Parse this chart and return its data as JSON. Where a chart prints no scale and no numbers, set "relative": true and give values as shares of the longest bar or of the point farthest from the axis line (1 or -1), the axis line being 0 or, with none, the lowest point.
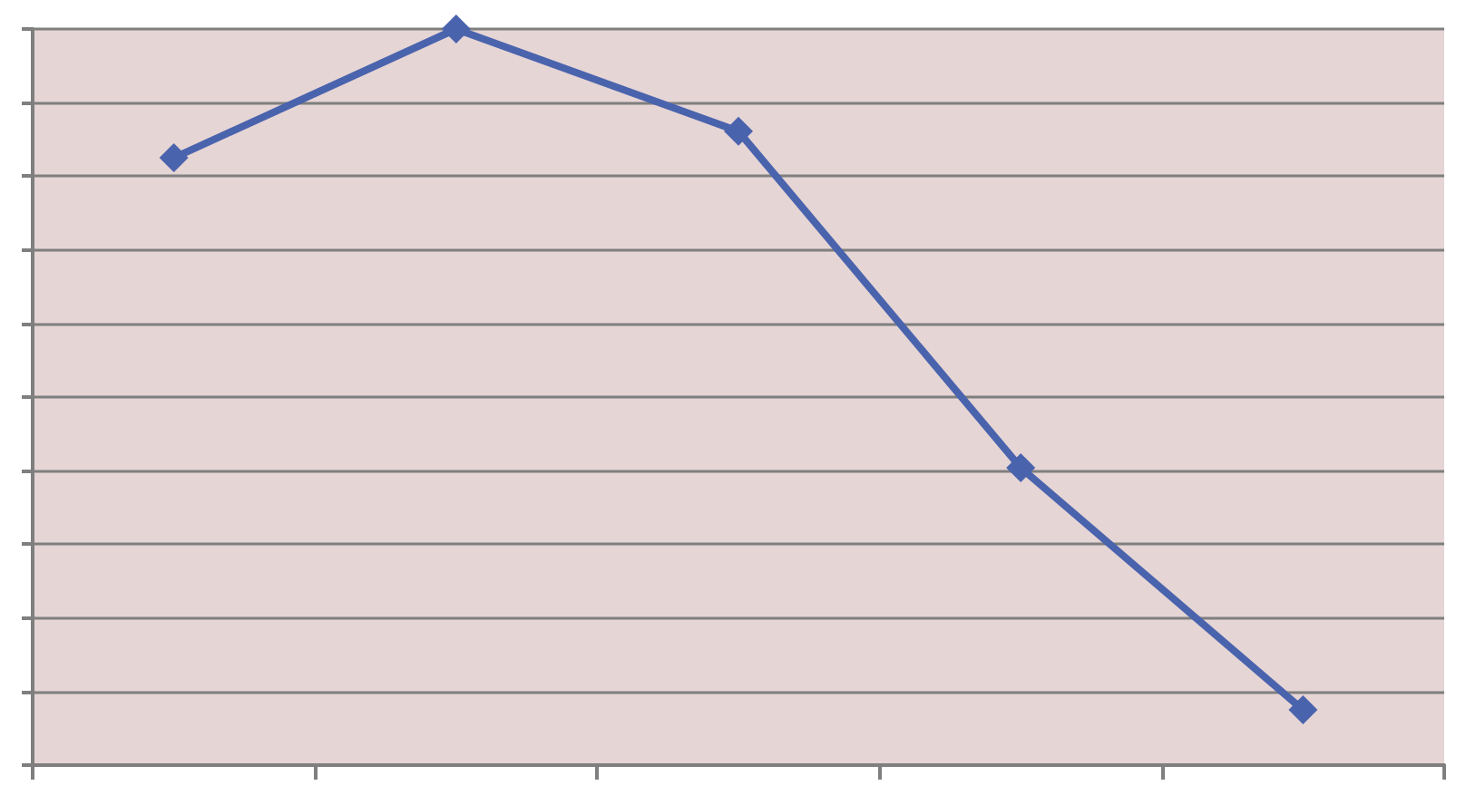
{
  "chart_data": {
    "type": "line",
    "relative": true,
    "categories": [
      null,
      null,
      null,
      null,
      null
    ],
    "series": [
      {
        "color": "#4a63ad",
        "values": [
          0.825,
          1,
          0.861,
          0.404,
          0.075
        ]
      }
    ],
    "grid": "y",
    "marker": "diamond",
    "line_style": "solid"
  }
}
